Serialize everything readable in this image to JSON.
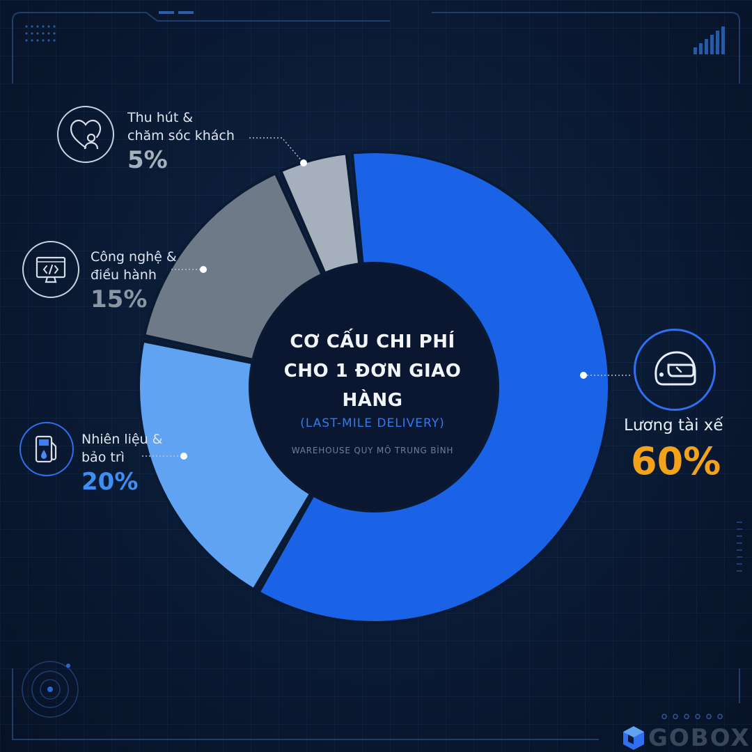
{
  "center": {
    "title_line1": "CƠ CẤU CHI PHÍ",
    "title_line2": "CHO 1 ĐƠN GIAO HÀNG",
    "subtitle": "(LAST-MILE DELIVERY)",
    "note": "WAREHOUSE QUY MÔ TRUNG BÌNH"
  },
  "callouts": {
    "driver": {
      "label": "Lương tài xế",
      "value": "60%"
    },
    "fuel": {
      "label_line1": "Nhiên liệu &",
      "label_line2": "bảo trì",
      "value": "20%"
    },
    "tech": {
      "label_line1": "Công nghệ &",
      "label_line2": "điều hành",
      "value": "15%"
    },
    "customer": {
      "label_line1": "Thu hút &",
      "label_line2": "chăm sóc khách",
      "value": "5%"
    }
  },
  "logo": {
    "text": "GOBOX"
  },
  "colors": {
    "driver": "#1a63e6",
    "fuel": "#5fa3f2",
    "tech": "#6f7a88",
    "customer": "#a6b0bd",
    "accent_orange": "#f4a21a",
    "accent_blue": "#2f6ff0"
  },
  "icons": {
    "driver": "helmet-icon",
    "fuel": "fuel-pump-icon",
    "tech": "code-monitor-icon",
    "customer": "heart-user-icon"
  },
  "chart_data": {
    "type": "pie",
    "donut": true,
    "categories": [
      "Lương tài xế",
      "Nhiên liệu & bảo trì",
      "Công nghệ & điều hành",
      "Thu hút & chăm sóc khách"
    ],
    "values": [
      60,
      20,
      15,
      5
    ],
    "colors": [
      "#1a63e6",
      "#5fa3f2",
      "#6f7a88",
      "#a6b0bd"
    ],
    "title": "CƠ CẤU CHI PHÍ CHO 1 ĐƠN GIAO HÀNG",
    "subtitle": "(LAST-MILE DELIVERY)"
  }
}
